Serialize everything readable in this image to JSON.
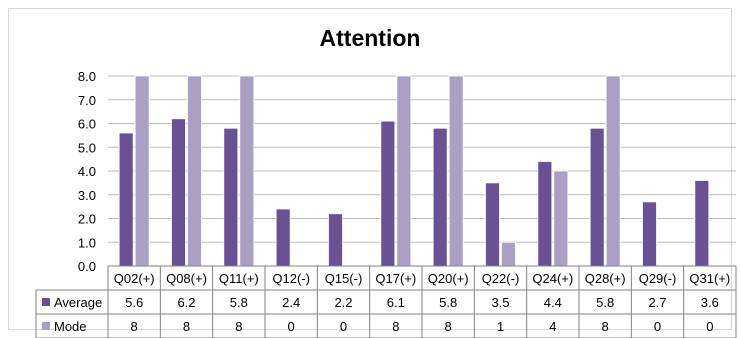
{
  "chart_data": {
    "type": "bar",
    "title": "Attention",
    "categories": [
      "Q02(+)",
      "Q08(+)",
      "Q11(+)",
      "Q12(-)",
      "Q15(-)",
      "Q17(+)",
      "Q20(+)",
      "Q22(-)",
      "Q24(+)",
      "Q28(+)",
      "Q29(-)",
      "Q31(+)"
    ],
    "series": [
      {
        "name": "Average",
        "values": [
          5.6,
          6.2,
          5.8,
          2.4,
          2.2,
          6.1,
          5.8,
          3.5,
          4.4,
          5.8,
          2.7,
          3.6
        ],
        "color": "#6a5193"
      },
      {
        "name": "Mode",
        "values": [
          8,
          8,
          8,
          0,
          0,
          8,
          8,
          1,
          4,
          8,
          0,
          0
        ],
        "color": "#ab9fc4"
      }
    ],
    "table_values": [
      [
        "5.6",
        "6.2",
        "5.8",
        "2.4",
        "2.2",
        "6.1",
        "5.8",
        "3.5",
        "4.4",
        "5.8",
        "2.7",
        "3.6"
      ],
      [
        "8",
        "8",
        "8",
        "0",
        "0",
        "8",
        "8",
        "1",
        "4",
        "8",
        "0",
        "0"
      ]
    ],
    "y_ticks": [
      "0.0",
      "1.0",
      "2.0",
      "3.0",
      "4.0",
      "5.0",
      "6.0",
      "7.0",
      "8.0"
    ],
    "ylim": [
      0,
      8
    ],
    "grid": true,
    "legend_placement": "data-table-left",
    "xlabel": "",
    "ylabel": ""
  }
}
